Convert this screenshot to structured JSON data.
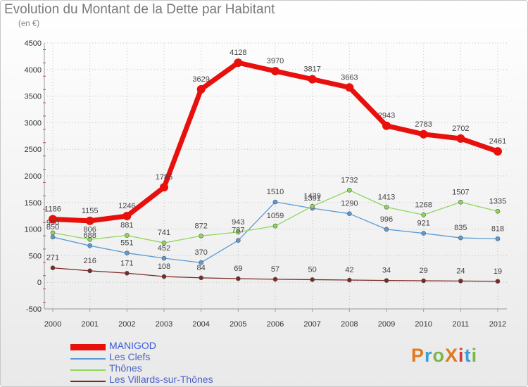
{
  "header": {
    "title": "Evolution du Montant de la Dette par Habitant",
    "unit": "(en €)"
  },
  "logo": {
    "text": "ProXiti",
    "colors": [
      "#e07a1f",
      "#3a9ed8",
      "#7ab648",
      "#e07a1f",
      "#d23a3a",
      "#3a9ed8",
      "#7ab648"
    ]
  },
  "chart_data": {
    "type": "line",
    "title": "Evolution du Montant de la Dette par Habitant",
    "subtitle": "(en €)",
    "xlabel": "",
    "ylabel": "",
    "ylim": [
      -500,
      4500
    ],
    "yticks": [
      -500,
      0,
      500,
      1000,
      1500,
      2000,
      2500,
      3000,
      3500,
      4000,
      4500
    ],
    "ytick_labels": [
      "-500",
      "0",
      "500",
      "1000",
      "1500",
      "2000",
      "2500",
      "3000",
      "3500",
      "4000",
      "4500"
    ],
    "x": [
      "2000",
      "2001",
      "2002",
      "2003",
      "2004",
      "2005",
      "2006",
      "2007",
      "2008",
      "2009",
      "2010",
      "2011",
      "2012"
    ],
    "legend_position": "bottom-left",
    "series": [
      {
        "name": "MANIGOD",
        "color": "#e8100c",
        "values": [
          1186,
          1155,
          1246,
          1786,
          3629,
          4128,
          3970,
          3817,
          3663,
          2943,
          2783,
          2702,
          2461
        ],
        "labels": [
          "1186",
          "1155",
          "1246",
          "1786",
          "3629",
          "4128",
          "3970",
          "3817",
          "3663",
          "2943",
          "2783",
          "2702",
          "2461"
        ]
      },
      {
        "name": "Les Clefs",
        "color": "#5b9bd5",
        "values": [
          850,
          688,
          551,
          452,
          370,
          787,
          1510,
          1391,
          1290,
          996,
          921,
          835,
          818
        ],
        "labels": [
          "850",
          "688",
          "551",
          "452",
          "370",
          "787",
          "1510",
          "1391",
          "1290",
          "996",
          "921",
          "835",
          "818"
        ]
      },
      {
        "name": "Thônes",
        "color": "#8cd85a",
        "values": [
          930,
          806,
          881,
          741,
          872,
          943,
          1059,
          1429,
          1732,
          1413,
          1268,
          1507,
          1335
        ],
        "labels": [
          "930",
          "806",
          "881",
          "741",
          "872",
          "943",
          "1059",
          "1429",
          "1732",
          "1413",
          "1268",
          "1507",
          "1335"
        ]
      },
      {
        "name": "Les Villards-sur-Thônes",
        "color": "#7a2a24",
        "values": [
          271,
          216,
          171,
          108,
          84,
          69,
          57,
          50,
          42,
          34,
          29,
          24,
          19
        ],
        "labels": [
          "271",
          "216",
          "171",
          "108",
          "84",
          "69",
          "57",
          "50",
          "42",
          "34",
          "29",
          "24",
          "19"
        ]
      }
    ]
  }
}
